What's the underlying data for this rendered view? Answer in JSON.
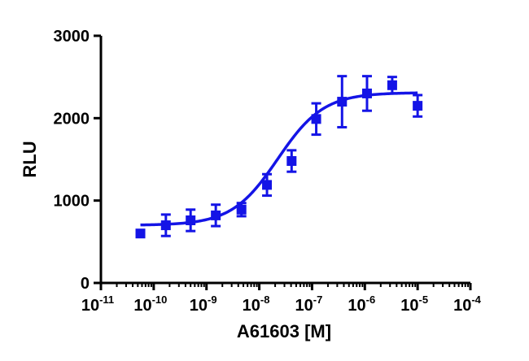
{
  "chart_data": {
    "type": "scatter",
    "xlabel": "A61603 [M]",
    "ylabel": "RLU",
    "x_scale": "log",
    "xlim": [
      1e-11,
      0.0001
    ],
    "ylim": [
      0,
      3000
    ],
    "x_ticks": [
      {
        "base": "10",
        "exp": "-11"
      },
      {
        "base": "10",
        "exp": "-10"
      },
      {
        "base": "10",
        "exp": "-9"
      },
      {
        "base": "10",
        "exp": "-8"
      },
      {
        "base": "10",
        "exp": "-7"
      },
      {
        "base": "10",
        "exp": "-6"
      },
      {
        "base": "10",
        "exp": "-5"
      },
      {
        "base": "10",
        "exp": "-4"
      }
    ],
    "y_ticks": [
      "0",
      "1000",
      "2000",
      "3000"
    ],
    "grid": false,
    "color": "#1414e6",
    "series": [
      {
        "marker": "square",
        "points": [
          {
            "x": 5.6e-11,
            "y": 600,
            "err": 0
          },
          {
            "x": 1.7e-10,
            "y": 700,
            "err": 130
          },
          {
            "x": 5e-10,
            "y": 760,
            "err": 130
          },
          {
            "x": 1.5e-09,
            "y": 820,
            "err": 130
          },
          {
            "x": 4.6e-09,
            "y": 890,
            "err": 80
          },
          {
            "x": 1.4e-08,
            "y": 1190,
            "err": 130
          },
          {
            "x": 4.1e-08,
            "y": 1480,
            "err": 130
          },
          {
            "x": 1.2e-07,
            "y": 1990,
            "err": 190
          },
          {
            "x": 3.7e-07,
            "y": 2200,
            "err": 310
          },
          {
            "x": 1.1e-06,
            "y": 2300,
            "err": 210
          },
          {
            "x": 3.3e-06,
            "y": 2400,
            "err": 100
          },
          {
            "x": 1e-05,
            "y": 2150,
            "err": 130
          }
        ],
        "fit": {
          "model": "4PL",
          "bottom": 700,
          "top": 2310,
          "logEC50": -7.65,
          "hill": 1.0
        }
      }
    ]
  }
}
